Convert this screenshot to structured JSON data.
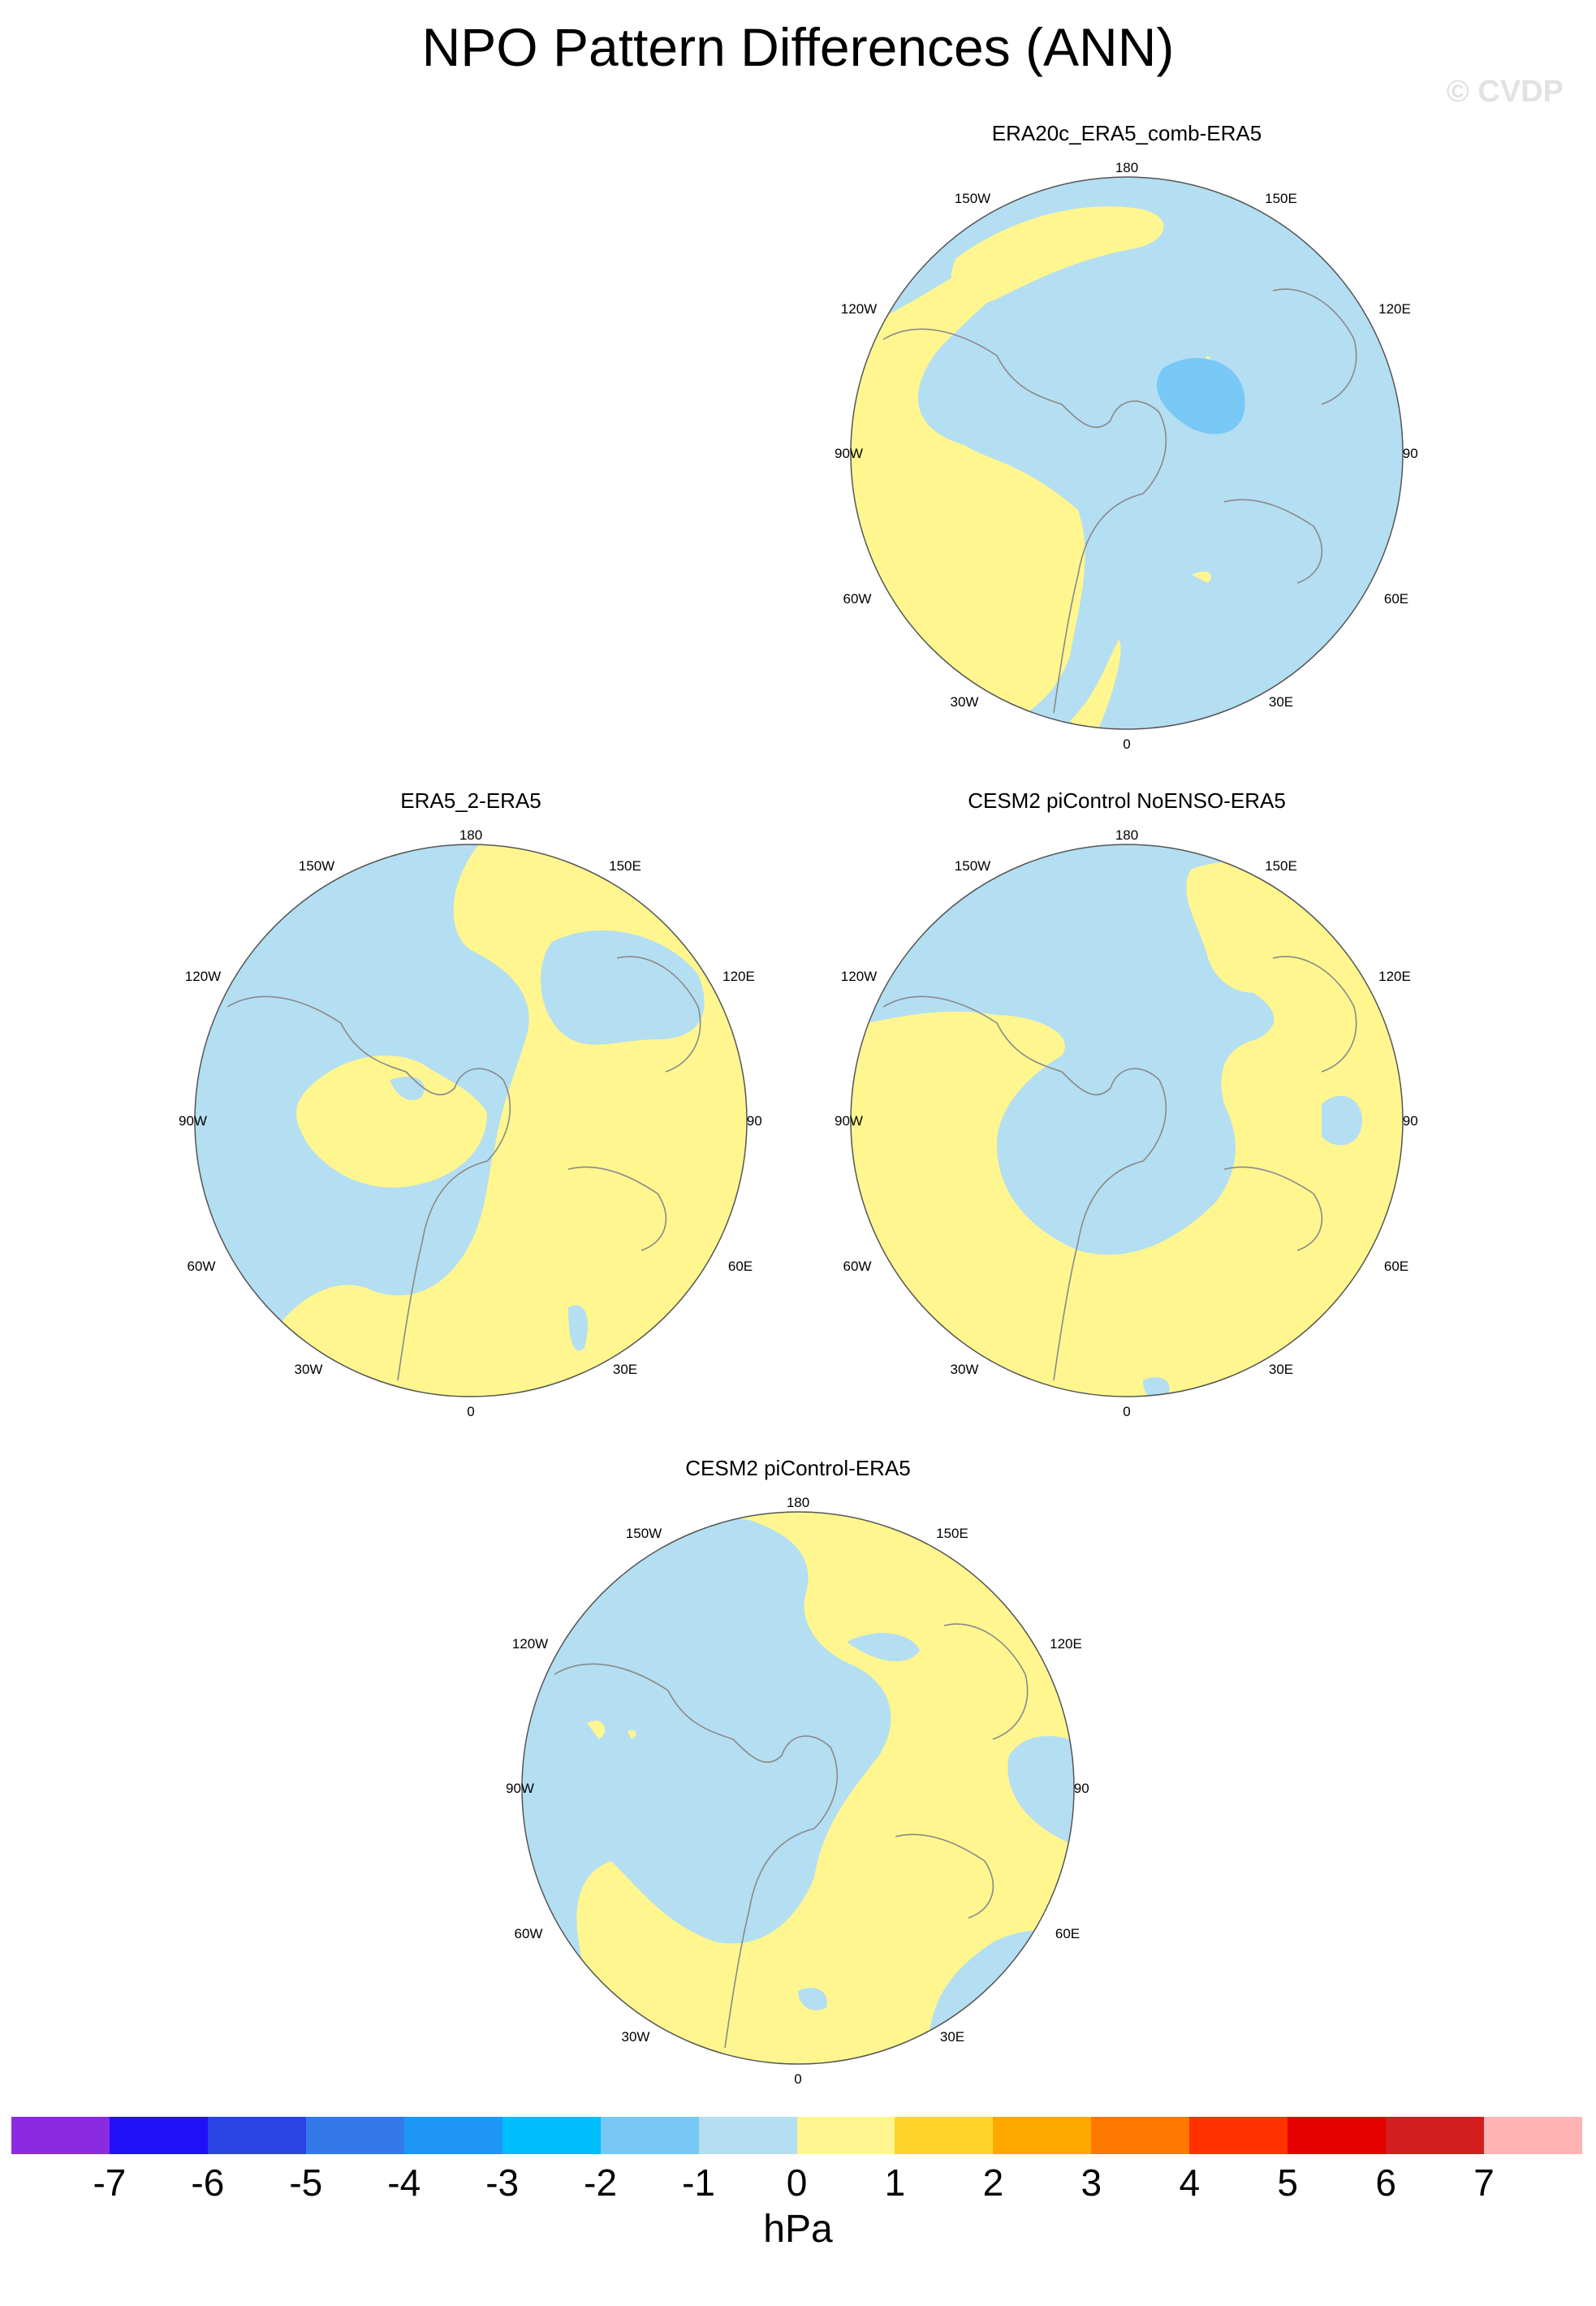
{
  "title": "NPO Pattern Differences (ANN)",
  "watermark": "© CVDP",
  "longitude_labels": {
    "l180": "180",
    "l150E": "150E",
    "l120E": "120E",
    "l90E": "90E",
    "l60E": "60E",
    "l30E": "30E",
    "l0": "0",
    "l30W": "30W",
    "l60W": "60W",
    "l90W": "90W",
    "l120W": "120W",
    "l150W": "150W"
  },
  "panels": [
    {
      "title": "ERA20c_ERA5_comb-ERA5"
    },
    {
      "title": "ERA5_2-ERA5"
    },
    {
      "title": "CESM2 piControl NoENSO-ERA5"
    },
    {
      "title": "CESM2 piControl-ERA5"
    }
  ],
  "colorbar": {
    "units": "hPa",
    "tick_labels": [
      "-7",
      "-6",
      "-5",
      "-4",
      "-3",
      "-2",
      "-1",
      "0",
      "1",
      "2",
      "3",
      "4",
      "5",
      "6",
      "7"
    ],
    "colors": [
      "#8a2be2",
      "#1f10f5",
      "#2a44e6",
      "#3479e8",
      "#1e96f5",
      "#00bfff",
      "#78c8f5",
      "#b4def2",
      "#fff68f",
      "#ffd42a",
      "#ffa800",
      "#ff7800",
      "#ff3200",
      "#e60000",
      "#d21e1e",
      "#ffb4b4"
    ]
  },
  "colors": {
    "positive_0_1": "#fff68f",
    "negative_1_0": "#b4def2",
    "negative_2_1": "#78c8f5"
  }
}
